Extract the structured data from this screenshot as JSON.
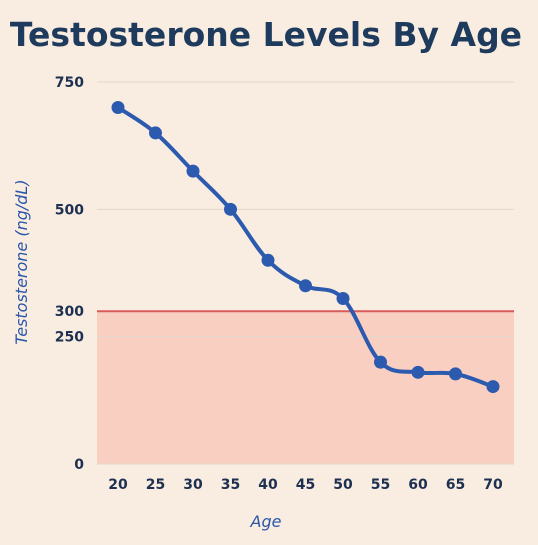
{
  "colors": {
    "background": "#f9ede2",
    "title": "#1e3a5c",
    "tick_text": "#1e3050",
    "axis_label": "#2a56a8",
    "line": "#2c5aae",
    "threshold_line": "#d95a5a",
    "threshold_fill": "#f9cfc2",
    "grid": "#e2d6cb"
  },
  "chart_data": {
    "type": "line",
    "title": "Testosterone Levels By Age",
    "xlabel": "Age",
    "ylabel": "Testosterone (ng/dL)",
    "x": [
      20,
      25,
      30,
      35,
      40,
      45,
      50,
      55,
      60,
      65,
      70
    ],
    "series": [
      {
        "values": [
          700,
          650,
          575,
          500,
          400,
          350,
          325,
          200,
          180,
          177,
          152
        ]
      }
    ],
    "yticks": [
      "750",
      "500",
      "300",
      "250",
      "0"
    ],
    "ytick_values": [
      750,
      500,
      300,
      250,
      0
    ],
    "xticks": [
      "20",
      "25",
      "30",
      "35",
      "40",
      "45",
      "50",
      "55",
      "60",
      "65",
      "70"
    ],
    "ylim": [
      0,
      750
    ],
    "grid": true,
    "threshold": {
      "value": 300,
      "shaded_below": true
    }
  }
}
